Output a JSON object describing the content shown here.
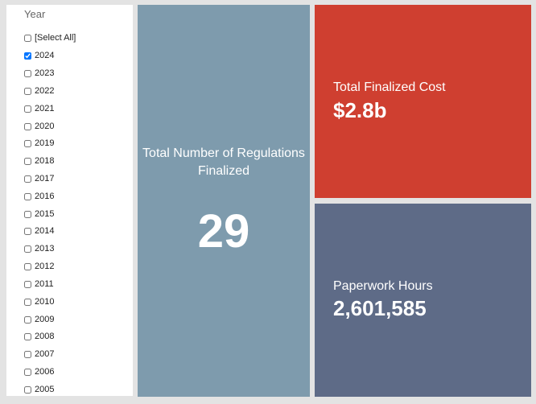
{
  "slicer": {
    "title": "Year",
    "options": [
      {
        "label": "[Select All]",
        "checked": false
      },
      {
        "label": "2024",
        "checked": true
      },
      {
        "label": "2023",
        "checked": false
      },
      {
        "label": "2022",
        "checked": false
      },
      {
        "label": "2021",
        "checked": false
      },
      {
        "label": "2020",
        "checked": false
      },
      {
        "label": "2019",
        "checked": false
      },
      {
        "label": "2018",
        "checked": false
      },
      {
        "label": "2017",
        "checked": false
      },
      {
        "label": "2016",
        "checked": false
      },
      {
        "label": "2015",
        "checked": false
      },
      {
        "label": "2014",
        "checked": false
      },
      {
        "label": "2013",
        "checked": false
      },
      {
        "label": "2012",
        "checked": false
      },
      {
        "label": "2011",
        "checked": false
      },
      {
        "label": "2010",
        "checked": false
      },
      {
        "label": "2009",
        "checked": false
      },
      {
        "label": "2008",
        "checked": false
      },
      {
        "label": "2007",
        "checked": false
      },
      {
        "label": "2006",
        "checked": false
      },
      {
        "label": "2005",
        "checked": false
      }
    ]
  },
  "tiles": {
    "regulations": {
      "label": "Total Number of Regulations Finalized",
      "value": "29",
      "color": "#7e9bad"
    },
    "cost": {
      "label": "Total Finalized Cost",
      "value": "$2.8b",
      "color": "#cf3f30"
    },
    "hours": {
      "label": "Paperwork Hours",
      "value": "2,601,585",
      "color": "#5e6b87"
    }
  }
}
